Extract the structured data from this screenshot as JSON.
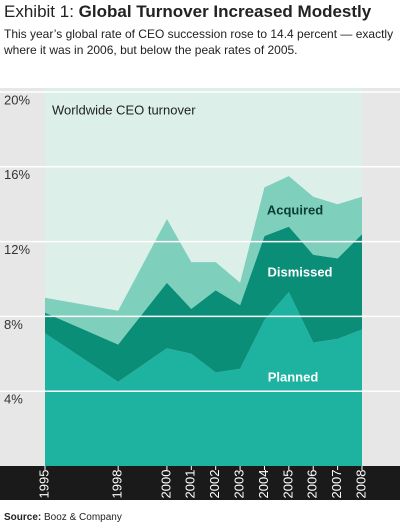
{
  "chart_data": {
    "type": "stacked_area",
    "exhibit": "Exhibit 1:",
    "title": "Global Turnover Increased Modestly",
    "subtitle": "This year’s global rate of CEO succession rose to 14.4 percent — exactly where it was in 2006, but below the peak rates of 2005.",
    "annotation": "Worldwide CEO turnover",
    "source_label": "Source:",
    "source": "Booz & Company",
    "x": [
      1995,
      1998,
      2000,
      2001,
      2002,
      2003,
      2004,
      2005,
      2006,
      2007,
      2008
    ],
    "xlim": [
      1995,
      2008
    ],
    "xticks": [
      1995,
      1998,
      2000,
      2001,
      2002,
      2003,
      2004,
      2005,
      2006,
      2007,
      2008
    ],
    "ylim": [
      0,
      20
    ],
    "yticks": [
      {
        "value": 4,
        "label": "4%"
      },
      {
        "value": 8,
        "label": "8%"
      },
      {
        "value": 12,
        "label": "12%"
      },
      {
        "value": 16,
        "label": "16%"
      },
      {
        "value": 20,
        "label": "20%"
      }
    ],
    "grid": true,
    "series": [
      {
        "name": "Planned",
        "color": "#1db3a0",
        "values": [
          7.1,
          4.5,
          6.3,
          6.0,
          5.0,
          5.2,
          7.8,
          9.3,
          6.6,
          6.8,
          7.3
        ]
      },
      {
        "name": "Dismissed",
        "color": "#0b8e78",
        "values": [
          1.1,
          2.0,
          3.5,
          2.4,
          4.4,
          3.4,
          4.5,
          3.5,
          4.7,
          4.3,
          5.1
        ]
      },
      {
        "name": "Acquired",
        "color": "#7fcfbd",
        "values": [
          0.8,
          1.8,
          3.4,
          2.5,
          1.5,
          1.2,
          2.6,
          2.7,
          3.1,
          2.9,
          2.0
        ]
      }
    ]
  }
}
